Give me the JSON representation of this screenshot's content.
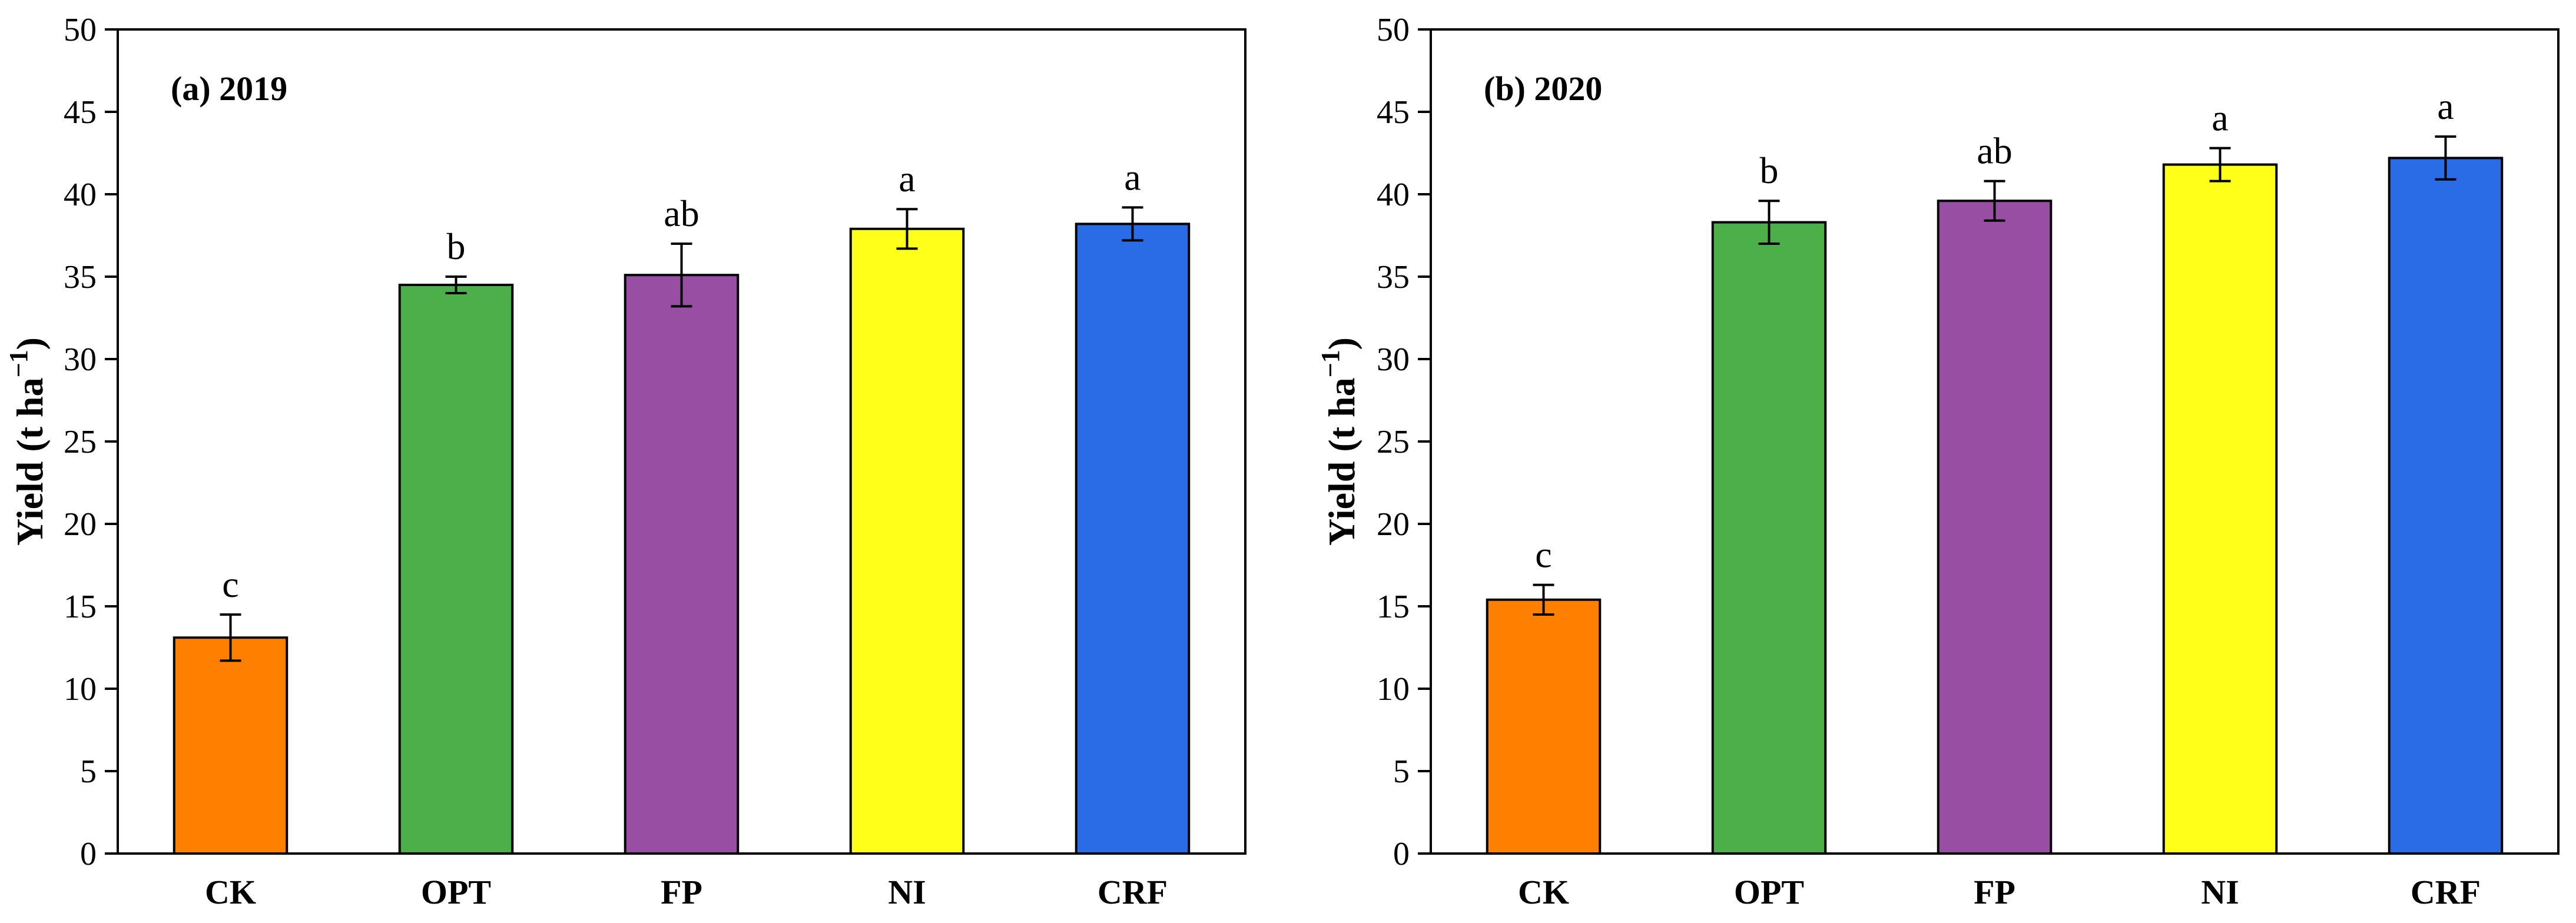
{
  "chart_data": [
    {
      "type": "bar",
      "title": "(a) 2019",
      "xlabel": "",
      "ylabel": "Yield (t ha",
      "ylabel_exponent": "−1",
      "ylabel_close": ")",
      "ylim": [
        0,
        50
      ],
      "yticks": [
        0,
        5,
        10,
        15,
        20,
        25,
        30,
        35,
        40,
        45,
        50
      ],
      "categories": [
        "CK",
        "OPT",
        "FP",
        "NI",
        "CRF"
      ],
      "values": [
        13.1,
        34.5,
        35.1,
        37.9,
        38.2
      ],
      "errors": [
        1.4,
        0.5,
        1.9,
        1.2,
        1.0
      ],
      "significance": [
        "c",
        "b",
        "ab",
        "a",
        "a"
      ],
      "colors": [
        "#FF7F00",
        "#4DAF4A",
        "#984EA3",
        "#FFFF1A",
        "#2A6CE6"
      ]
    },
    {
      "type": "bar",
      "title": "(b) 2020",
      "xlabel": "",
      "ylabel": "Yield (t ha",
      "ylabel_exponent": "−1",
      "ylabel_close": ")",
      "ylim": [
        0,
        50
      ],
      "yticks": [
        0,
        5,
        10,
        15,
        20,
        25,
        30,
        35,
        40,
        45,
        50
      ],
      "categories": [
        "CK",
        "OPT",
        "FP",
        "NI",
        "CRF"
      ],
      "values": [
        15.4,
        38.3,
        39.6,
        41.8,
        42.2
      ],
      "errors": [
        0.9,
        1.3,
        1.2,
        1.0,
        1.3
      ],
      "significance": [
        "c",
        "b",
        "ab",
        "a",
        "a"
      ],
      "colors": [
        "#FF7F00",
        "#4DAF4A",
        "#984EA3",
        "#FFFF1A",
        "#2A6CE6"
      ]
    }
  ]
}
